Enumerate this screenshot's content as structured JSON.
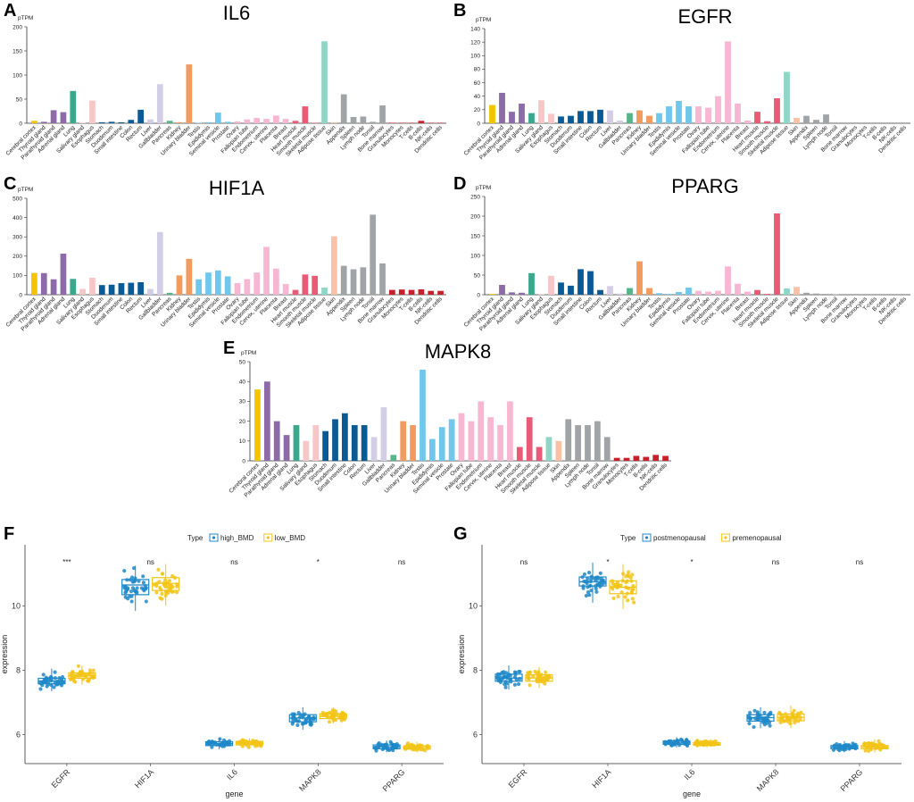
{
  "tissues": [
    "Cerebral cortex",
    "Thyroid gland",
    "Parathyroid gland",
    "Adrenal gland",
    "Lung",
    "Salivary gland",
    "Esophagus",
    "Stomach",
    "Duodenum",
    "Small intestine",
    "Colon",
    "Rectum",
    "Liver",
    "Gallbladder",
    "Pancreas",
    "Kidney",
    "Urinary bladder",
    "Testis",
    "Epididymis",
    "Seminal vesicle",
    "Prostate",
    "Ovary",
    "Fallopian tube",
    "Endometrium",
    "Cervix, uterine",
    "Placenta",
    "Breast",
    "Heart muscle",
    "Smooth muscle",
    "Skeletal muscle",
    "Adipose tissue",
    "Skin",
    "Appendix",
    "Spleen",
    "Lymph node",
    "Tonsil",
    "Bone marrow",
    "Granulocytes",
    "Monocytes",
    "T-cells",
    "B-cells",
    "NK-cells",
    "Dendritic cells"
  ],
  "tissue_colors": [
    "#f5c400",
    "#8c6ba8",
    "#8c6ba8",
    "#8c6ba8",
    "#3aa88c",
    "#f7c7c7",
    "#f7c7c7",
    "#0a5a96",
    "#0a5a96",
    "#0a5a96",
    "#0a5a96",
    "#0a5a96",
    "#d4cde6",
    "#d4cde6",
    "#57b58a",
    "#f39a5f",
    "#f39a5f",
    "#6fc8ec",
    "#6fc8ec",
    "#6fc8ec",
    "#6fc8ec",
    "#f7b6d2",
    "#f7b6d2",
    "#f7b6d2",
    "#f7b6d2",
    "#f7b6d2",
    "#f7b6d2",
    "#e85a75",
    "#e85a75",
    "#e85a75",
    "#8fd6c7",
    "#f9c2a7",
    "#a0a4a6",
    "#a0a4a6",
    "#a0a4a6",
    "#a0a4a6",
    "#a0a4a6",
    "#c8202a",
    "#c8202a",
    "#c8202a",
    "#c8202a",
    "#c8202a",
    "#c8202a"
  ],
  "colors": {
    "high": "#1f88c8",
    "low": "#f2c418",
    "post": "#1f88c8",
    "pre": "#f2c418"
  },
  "chart_data": [
    {
      "panel": "A",
      "type": "bar",
      "title": "IL6",
      "ylabel": "pTPM",
      "ylim": [
        0,
        200
      ],
      "yticks": [
        0,
        50,
        100,
        150,
        200
      ],
      "values": [
        5,
        3,
        27,
        23,
        67,
        1,
        47,
        2,
        3,
        2,
        7,
        28,
        8,
        81,
        5,
        2,
        122,
        1,
        2,
        22,
        3,
        4,
        8,
        11,
        9,
        16,
        9,
        5,
        35,
        1,
        170,
        2,
        60,
        13,
        14,
        3,
        37,
        1,
        1,
        1,
        5,
        1,
        1
      ]
    },
    {
      "panel": "B",
      "type": "bar",
      "title": "EGFR",
      "ylabel": "pTPM",
      "ylim": [
        0,
        140
      ],
      "yticks": [
        0,
        20,
        40,
        60,
        80,
        100,
        120,
        140
      ],
      "values": [
        27,
        45,
        17,
        29,
        15,
        34,
        14,
        10,
        11,
        18,
        18,
        20,
        19,
        4,
        15,
        19,
        11,
        15,
        25,
        33,
        25,
        25,
        23,
        40,
        121,
        29,
        4,
        17,
        3,
        37,
        76,
        8,
        11,
        5,
        13,
        0,
        0,
        0,
        0,
        0,
        0,
        0,
        0
      ]
    },
    {
      "panel": "C",
      "type": "bar",
      "title": "HIF1A",
      "ylabel": "pTPM",
      "ylim": [
        0,
        500
      ],
      "yticks": [
        0,
        100,
        200,
        300,
        400,
        500
      ],
      "values": [
        113,
        112,
        80,
        213,
        82,
        30,
        88,
        50,
        52,
        60,
        62,
        65,
        30,
        325,
        10,
        100,
        186,
        80,
        115,
        126,
        95,
        60,
        81,
        115,
        248,
        135,
        55,
        25,
        105,
        98,
        37,
        303,
        150,
        132,
        142,
        415,
        162,
        25,
        27,
        25,
        28,
        20,
        20
      ]
    },
    {
      "panel": "D",
      "type": "bar",
      "title": "PPARG",
      "ylabel": "pTPM",
      "ylim": [
        0,
        250
      ],
      "yticks": [
        0,
        50,
        100,
        150,
        200,
        250
      ],
      "values": [
        2,
        25,
        6,
        5,
        55,
        1,
        48,
        31,
        23,
        65,
        60,
        12,
        22,
        3,
        17,
        85,
        17,
        4,
        2,
        7,
        18,
        10,
        8,
        10,
        72,
        28,
        8,
        12,
        2,
        207,
        16,
        20,
        5,
        3,
        2,
        1,
        0,
        0,
        0,
        0,
        0,
        0,
        0
      ]
    },
    {
      "panel": "E",
      "type": "bar",
      "title": "MAPK8",
      "ylabel": "pTPM",
      "ylim": [
        0,
        50
      ],
      "yticks": [
        0,
        10,
        20,
        30,
        40,
        50
      ],
      "values": [
        36,
        40,
        20,
        13,
        18,
        10,
        18,
        15,
        21,
        24,
        18,
        18,
        12,
        27,
        3,
        20,
        18,
        46,
        11,
        17,
        21,
        24,
        20,
        30,
        22,
        18,
        30,
        7,
        22,
        7,
        12,
        10,
        21,
        18,
        18,
        20,
        12,
        1.5,
        1.5,
        2.5,
        2,
        3,
        2.5
      ]
    },
    {
      "panel": "F",
      "type": "boxplot",
      "xlabel": "gene",
      "ylabel": "expression",
      "legend_title": "Type",
      "legend": [
        "high_BMD",
        "low_BMD"
      ],
      "categories": [
        "EGFR",
        "HIF1A",
        "IL6",
        "MAPK8",
        "PPARG"
      ],
      "significance": [
        "***",
        "ns",
        "ns",
        "*",
        "ns"
      ],
      "ylim": [
        5.1,
        11.9
      ],
      "yticks": [
        6,
        8,
        10
      ],
      "groups": [
        {
          "name": "high_BMD",
          "q1": [
            7.58,
            10.35,
            5.66,
            6.4,
            5.56
          ],
          "median": [
            7.67,
            10.65,
            5.72,
            6.52,
            5.62
          ],
          "q3": [
            7.75,
            10.82,
            5.78,
            6.62,
            5.68
          ],
          "whislo": [
            7.35,
            9.85,
            5.55,
            6.15,
            5.45
          ],
          "whishi": [
            8.05,
            11.25,
            5.9,
            6.85,
            5.82
          ]
        },
        {
          "name": "low_BMD",
          "q1": [
            7.75,
            10.48,
            5.68,
            6.5,
            5.55
          ],
          "median": [
            7.83,
            10.7,
            5.73,
            6.57,
            5.6
          ],
          "q3": [
            7.92,
            10.88,
            5.79,
            6.65,
            5.65
          ],
          "whislo": [
            7.55,
            10.0,
            5.58,
            6.35,
            5.45
          ],
          "whishi": [
            8.15,
            11.3,
            5.88,
            6.85,
            5.78
          ]
        }
      ]
    },
    {
      "panel": "G",
      "type": "boxplot",
      "xlabel": "gene",
      "ylabel": "expression",
      "legend_title": "Type",
      "legend": [
        "postmenopausal",
        "premenopausal"
      ],
      "categories": [
        "EGFR",
        "HIF1A",
        "IL6",
        "MAPK8",
        "PPARG"
      ],
      "significance": [
        "ns",
        "*",
        "*",
        "ns",
        "ns"
      ],
      "ylim": [
        5.1,
        11.9
      ],
      "yticks": [
        6,
        8,
        10
      ],
      "groups": [
        {
          "name": "postmenopausal",
          "q1": [
            7.66,
            10.62,
            5.7,
            6.42,
            5.56
          ],
          "median": [
            7.76,
            10.75,
            5.74,
            6.53,
            5.61
          ],
          "q3": [
            7.88,
            10.9,
            5.8,
            6.62,
            5.66
          ],
          "whislo": [
            7.4,
            10.1,
            5.6,
            6.2,
            5.45
          ],
          "whishi": [
            8.15,
            11.35,
            5.92,
            6.85,
            5.8
          ]
        },
        {
          "name": "premenopausal",
          "q1": [
            7.66,
            10.38,
            5.67,
            6.43,
            5.56
          ],
          "median": [
            7.76,
            10.58,
            5.7,
            6.54,
            5.61
          ],
          "q3": [
            7.86,
            10.78,
            5.75,
            6.64,
            5.66
          ],
          "whislo": [
            7.45,
            9.9,
            5.6,
            6.2,
            5.45
          ],
          "whishi": [
            8.1,
            11.3,
            5.85,
            6.9,
            5.85
          ]
        }
      ]
    }
  ]
}
